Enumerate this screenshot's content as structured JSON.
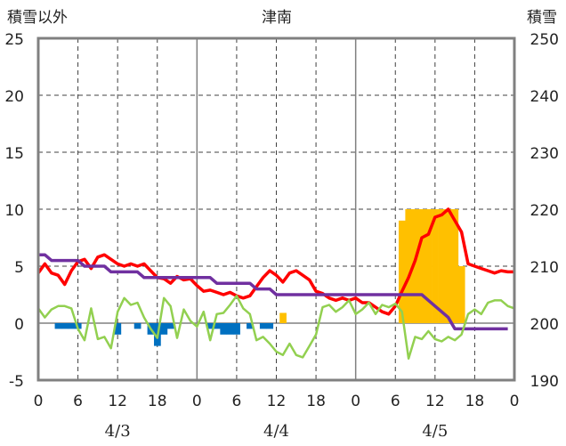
{
  "chart_data": {
    "type": "line",
    "title": "津南",
    "left_axis_label": "積雪以外",
    "right_axis_label": "積雪",
    "left_ylim": [
      -5,
      25
    ],
    "left_yticks": [
      "-5",
      "0",
      "5",
      "10",
      "15",
      "20",
      "25"
    ],
    "right_ylim": [
      190,
      250
    ],
    "right_yticks": [
      "190",
      "200",
      "210",
      "220",
      "230",
      "240",
      "250"
    ],
    "x_range_hours": [
      0,
      72
    ],
    "x_tick_labels": [
      "0",
      "6",
      "12",
      "18",
      "0",
      "6",
      "12",
      "18",
      "0",
      "6",
      "12",
      "18",
      "0"
    ],
    "dates": [
      "4/3",
      "4/4",
      "4/5"
    ],
    "grid": true,
    "colors": {
      "red_line": "#ff0000",
      "purple_line": "#7030a0",
      "green_line": "#92d050",
      "orange_bar": "#ffc000",
      "blue_bar": "#0070c0"
    },
    "series": [
      {
        "type": "line",
        "axis": "left",
        "color": "#ff0000",
        "x": [
          0,
          1,
          2,
          3,
          4,
          5,
          6,
          7,
          8,
          9,
          10,
          11,
          12,
          13,
          14,
          15,
          16,
          17,
          18,
          19,
          20,
          21,
          22,
          23,
          24,
          25,
          26,
          27,
          28,
          29,
          30,
          31,
          32,
          33,
          34,
          35,
          36,
          37,
          38,
          39,
          40,
          41,
          42,
          43,
          44,
          45,
          46,
          47,
          48,
          49,
          50,
          51,
          52,
          53,
          54,
          55,
          56,
          57,
          58,
          59,
          60,
          61,
          62,
          63,
          64,
          65,
          66,
          67,
          68,
          69,
          70,
          71,
          72
        ],
        "values": [
          4.4,
          5.2,
          4.4,
          4.2,
          3.4,
          4.6,
          5.4,
          5.6,
          4.8,
          5.8,
          6.0,
          5.6,
          5.2,
          5.0,
          5.2,
          5.0,
          5.2,
          4.6,
          4.0,
          3.9,
          3.5,
          4.1,
          3.8,
          3.9,
          3.3,
          2.8,
          2.9,
          2.7,
          2.5,
          2.7,
          2.4,
          2.2,
          2.4,
          3.2,
          4.0,
          4.6,
          4.2,
          3.6,
          4.4,
          4.6,
          4.2,
          3.8,
          2.8,
          2.6,
          2.2,
          2.0,
          2.2,
          2.0,
          2.2,
          1.8,
          1.8,
          1.4,
          1.0,
          0.8,
          1.5,
          2.8,
          4.0,
          5.5,
          7.5,
          7.8,
          9.3,
          9.5,
          10.0,
          9.0,
          8.0,
          5.2,
          5.0,
          4.8,
          4.6,
          4.4,
          4.6,
          4.5,
          4.5
        ]
      },
      {
        "type": "line",
        "axis": "right",
        "color": "#7030a0",
        "x": [
          0,
          1,
          2,
          3,
          4,
          5,
          6,
          7,
          8,
          9,
          10,
          11,
          12,
          13,
          14,
          15,
          16,
          17,
          18,
          19,
          20,
          21,
          22,
          23,
          24,
          25,
          26,
          27,
          28,
          29,
          30,
          31,
          32,
          33,
          34,
          35,
          36,
          37,
          38,
          39,
          40,
          41,
          42,
          43,
          44,
          45,
          46,
          47,
          48,
          49,
          50,
          51,
          52,
          53,
          54,
          55,
          56,
          57,
          58,
          59,
          60,
          61,
          62,
          63,
          64,
          65,
          66,
          67,
          68,
          69,
          70,
          71
        ],
        "values": [
          212,
          212,
          211,
          211,
          211,
          211,
          211,
          210,
          210,
          210,
          210,
          209,
          209,
          209,
          209,
          209,
          208,
          208,
          208,
          208,
          208,
          208,
          208,
          208,
          208,
          208,
          208,
          207,
          207,
          207,
          207,
          207,
          207,
          206,
          206,
          206,
          205,
          205,
          205,
          205,
          205,
          205,
          205,
          205,
          205,
          205,
          205,
          205,
          205,
          205,
          205,
          205,
          205,
          205,
          205,
          205,
          205,
          205,
          205,
          204,
          203,
          202,
          201,
          199,
          199,
          199,
          199,
          199,
          199,
          199,
          199,
          199
        ]
      },
      {
        "type": "line",
        "axis": "left",
        "color": "#92d050",
        "x": [
          0,
          1,
          2,
          3,
          4,
          5,
          6,
          7,
          8,
          9,
          10,
          11,
          12,
          13,
          14,
          15,
          16,
          17,
          18,
          19,
          20,
          21,
          22,
          23,
          24,
          25,
          26,
          27,
          28,
          29,
          30,
          31,
          32,
          33,
          34,
          35,
          36,
          37,
          38,
          39,
          40,
          41,
          42,
          43,
          44,
          45,
          46,
          47,
          48,
          49,
          50,
          51,
          52,
          53,
          54,
          55,
          56,
          57,
          58,
          59,
          60,
          61,
          62,
          63,
          64,
          65,
          66,
          67,
          68,
          69,
          70,
          71,
          72
        ],
        "values": [
          1.3,
          0.5,
          1.2,
          1.5,
          1.5,
          1.3,
          -0.5,
          -1.5,
          1.3,
          -1.4,
          -1.2,
          -2.2,
          1.0,
          2.2,
          1.6,
          1.8,
          0.5,
          -0.5,
          -1.3,
          2.2,
          1.5,
          -1.3,
          1.2,
          0.2,
          -0.3,
          1.0,
          -1.5,
          0.8,
          0.9,
          1.6,
          2.4,
          1.3,
          0.8,
          -1.5,
          -1.2,
          -1.8,
          -2.5,
          -2.8,
          -1.8,
          -2.8,
          -3.0,
          -2.0,
          -1.0,
          1.4,
          1.6,
          1.0,
          1.4,
          2.0,
          0.8,
          1.2,
          1.8,
          0.8,
          1.6,
          1.4,
          1.7,
          1.0,
          -3.1,
          -1.2,
          -1.4,
          -0.7,
          -1.4,
          -1.6,
          -1.2,
          -1.5,
          -1.0,
          0.8,
          1.2,
          0.8,
          1.8,
          2.0,
          2.0,
          1.5,
          1.3
        ]
      },
      {
        "type": "bar",
        "axis": "left",
        "color": "#ffc000",
        "x": [
          37,
          55,
          56,
          57,
          58,
          59,
          60,
          61,
          62,
          63,
          64
        ],
        "values": [
          0.9,
          9.0,
          10.0,
          10.0,
          10.0,
          10.0,
          10.0,
          10.0,
          10.0,
          10.0,
          5.0
        ]
      },
      {
        "type": "bar",
        "axis": "left",
        "color": "#0070c0",
        "x": [
          3,
          4,
          5,
          6,
          12,
          15,
          17,
          18,
          19,
          20,
          26,
          27,
          28,
          29,
          30,
          32,
          34,
          35
        ],
        "values": [
          -0.5,
          -0.5,
          -0.5,
          -0.5,
          -1.0,
          -0.5,
          -1.0,
          -2.0,
          -1.0,
          -0.5,
          -0.5,
          -0.5,
          -1.0,
          -1.0,
          -1.0,
          -0.5,
          -0.5,
          -0.5
        ]
      }
    ]
  }
}
